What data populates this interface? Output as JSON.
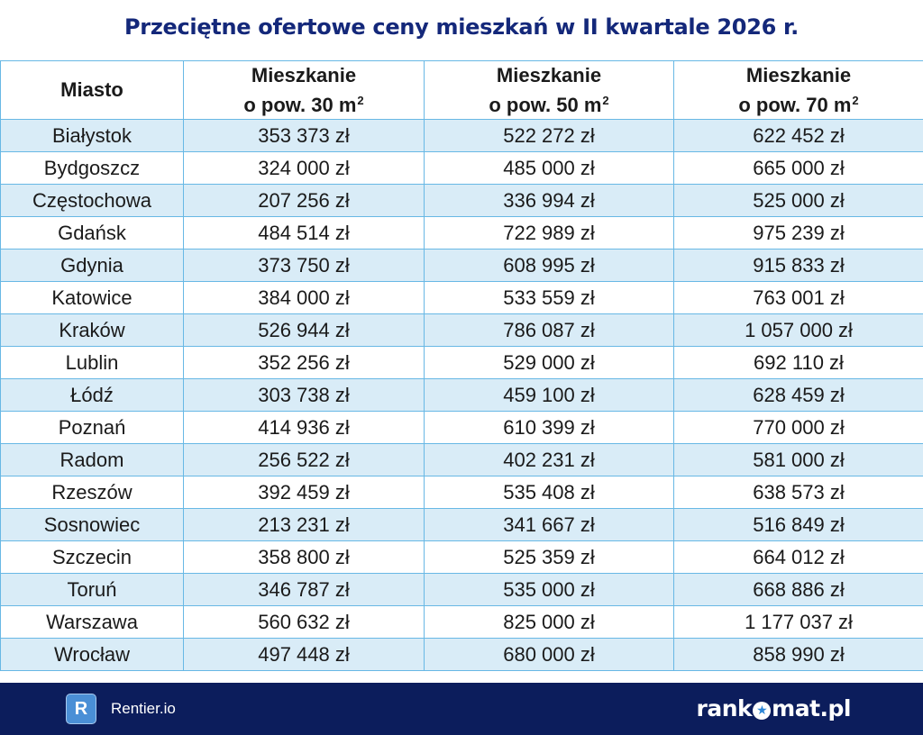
{
  "title": "Przeciętne ofertowe ceny mieszkań w II kwartale 2026 r.",
  "table": {
    "headers": {
      "city": "Miasto",
      "col30": {
        "line1": "Mieszkanie",
        "line2": "o pow. 30 m",
        "sup": "2"
      },
      "col50": {
        "line1": "Mieszkanie",
        "line2": "o pow. 50 m",
        "sup": "2"
      },
      "col70": {
        "line1": "Mieszkanie",
        "line2": "o pow. 70 m",
        "sup": "2"
      }
    },
    "rows": [
      {
        "city": "Białystok",
        "p30": "353 373 zł",
        "p50": "522 272 zł",
        "p70": "622 452 zł"
      },
      {
        "city": "Bydgoszcz",
        "p30": "324 000 zł",
        "p50": "485 000 zł",
        "p70": "665 000 zł"
      },
      {
        "city": "Częstochowa",
        "p30": "207 256 zł",
        "p50": "336 994 zł",
        "p70": "525 000 zł"
      },
      {
        "city": "Gdańsk",
        "p30": "484 514 zł",
        "p50": "722 989 zł",
        "p70": "975 239 zł"
      },
      {
        "city": "Gdynia",
        "p30": "373 750 zł",
        "p50": "608 995 zł",
        "p70": "915 833 zł"
      },
      {
        "city": "Katowice",
        "p30": "384 000 zł",
        "p50": "533 559 zł",
        "p70": "763 001 zł"
      },
      {
        "city": "Kraków",
        "p30": "526 944 zł",
        "p50": "786 087 zł",
        "p70": "1 057 000 zł"
      },
      {
        "city": "Lublin",
        "p30": "352 256 zł",
        "p50": "529 000 zł",
        "p70": "692 110 zł"
      },
      {
        "city": "Łódź",
        "p30": "303 738 zł",
        "p50": "459 100 zł",
        "p70": "628 459 zł"
      },
      {
        "city": "Poznań",
        "p30": "414 936 zł",
        "p50": "610 399 zł",
        "p70": "770 000 zł"
      },
      {
        "city": "Radom",
        "p30": "256 522 zł",
        "p50": "402 231 zł",
        "p70": "581 000 zł"
      },
      {
        "city": "Rzeszów",
        "p30": "392 459 zł",
        "p50": "535 408 zł",
        "p70": "638 573 zł"
      },
      {
        "city": "Sosnowiec",
        "p30": "213 231 zł",
        "p50": "341 667 zł",
        "p70": "516 849 zł"
      },
      {
        "city": "Szczecin",
        "p30": "358 800 zł",
        "p50": "525 359 zł",
        "p70": "664 012 zł"
      },
      {
        "city": "Toruń",
        "p30": "346 787 zł",
        "p50": "535 000 zł",
        "p70": "668 886 zł"
      },
      {
        "city": "Warszawa",
        "p30": "560 632 zł",
        "p50": "825 000 zł",
        "p70": "1 177 037 zł"
      },
      {
        "city": "Wrocław",
        "p30": "497 448 zł",
        "p50": "680 000 zł",
        "p70": "858 990 zł"
      }
    ]
  },
  "footer": {
    "rentier": {
      "logo_letter": "R",
      "name": "Rentier.io"
    },
    "rankomat": {
      "before": "rank",
      "o_mark": "★",
      "after": "mat.pl"
    }
  },
  "colors": {
    "title": "#14287a",
    "footer_bg": "#0c1d5c",
    "row_stripe": "#d9ecf7",
    "grid_line": "#68b8e5",
    "rentier_logo": "#4a8fd6"
  }
}
